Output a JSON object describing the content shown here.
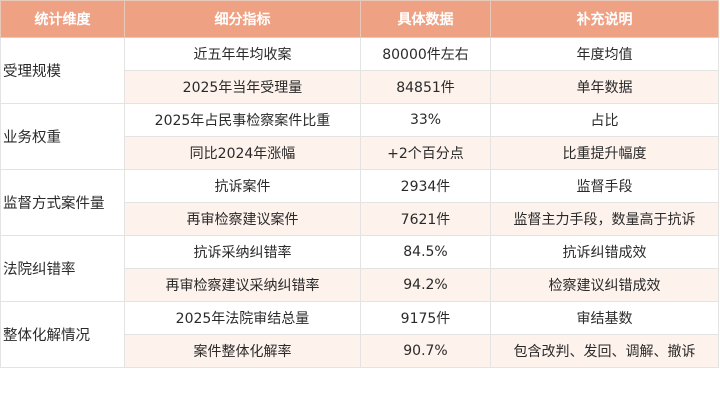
{
  "headers": [
    "统计维度",
    "细分指标",
    "具体数据",
    "补充说明"
  ],
  "groups": [
    {
      "dimension": "受理规模",
      "rows": [
        {
          "indicator": "近五年年均收案",
          "value": "80000件左右",
          "note": "年度均值"
        },
        {
          "indicator": "2025年当年受理量",
          "value": "84851件",
          "note": "单年数据"
        }
      ]
    },
    {
      "dimension": "业务权重",
      "rows": [
        {
          "indicator": "2025年占民事检察案件比重",
          "value": "33%",
          "note": "占比"
        },
        {
          "indicator": "同比2024年涨幅",
          "value": "+2个百分点",
          "note": "比重提升幅度"
        }
      ]
    },
    {
      "dimension": "监督方式案件量",
      "rows": [
        {
          "indicator": "抗诉案件",
          "value": "2934件",
          "note": "监督手段"
        },
        {
          "indicator": "再审检察建议案件",
          "value": "7621件",
          "note": "监督主力手段，数量高于抗诉"
        }
      ]
    },
    {
      "dimension": "法院纠错率",
      "rows": [
        {
          "indicator": "抗诉采纳纠错率",
          "value": "84.5%",
          "note": "抗诉纠错成效"
        },
        {
          "indicator": "再审检察建议采纳纠错率",
          "value": "94.2%",
          "note": "检察建议纠错成效"
        }
      ]
    },
    {
      "dimension": "整体化解情况",
      "rows": [
        {
          "indicator": "2025年法院审结总量",
          "value": "9175件",
          "note": "审结基数"
        },
        {
          "indicator": "案件整体化解率",
          "value": "90.7%",
          "note": "包含改判、发回、调解、撤诉"
        }
      ]
    }
  ]
}
